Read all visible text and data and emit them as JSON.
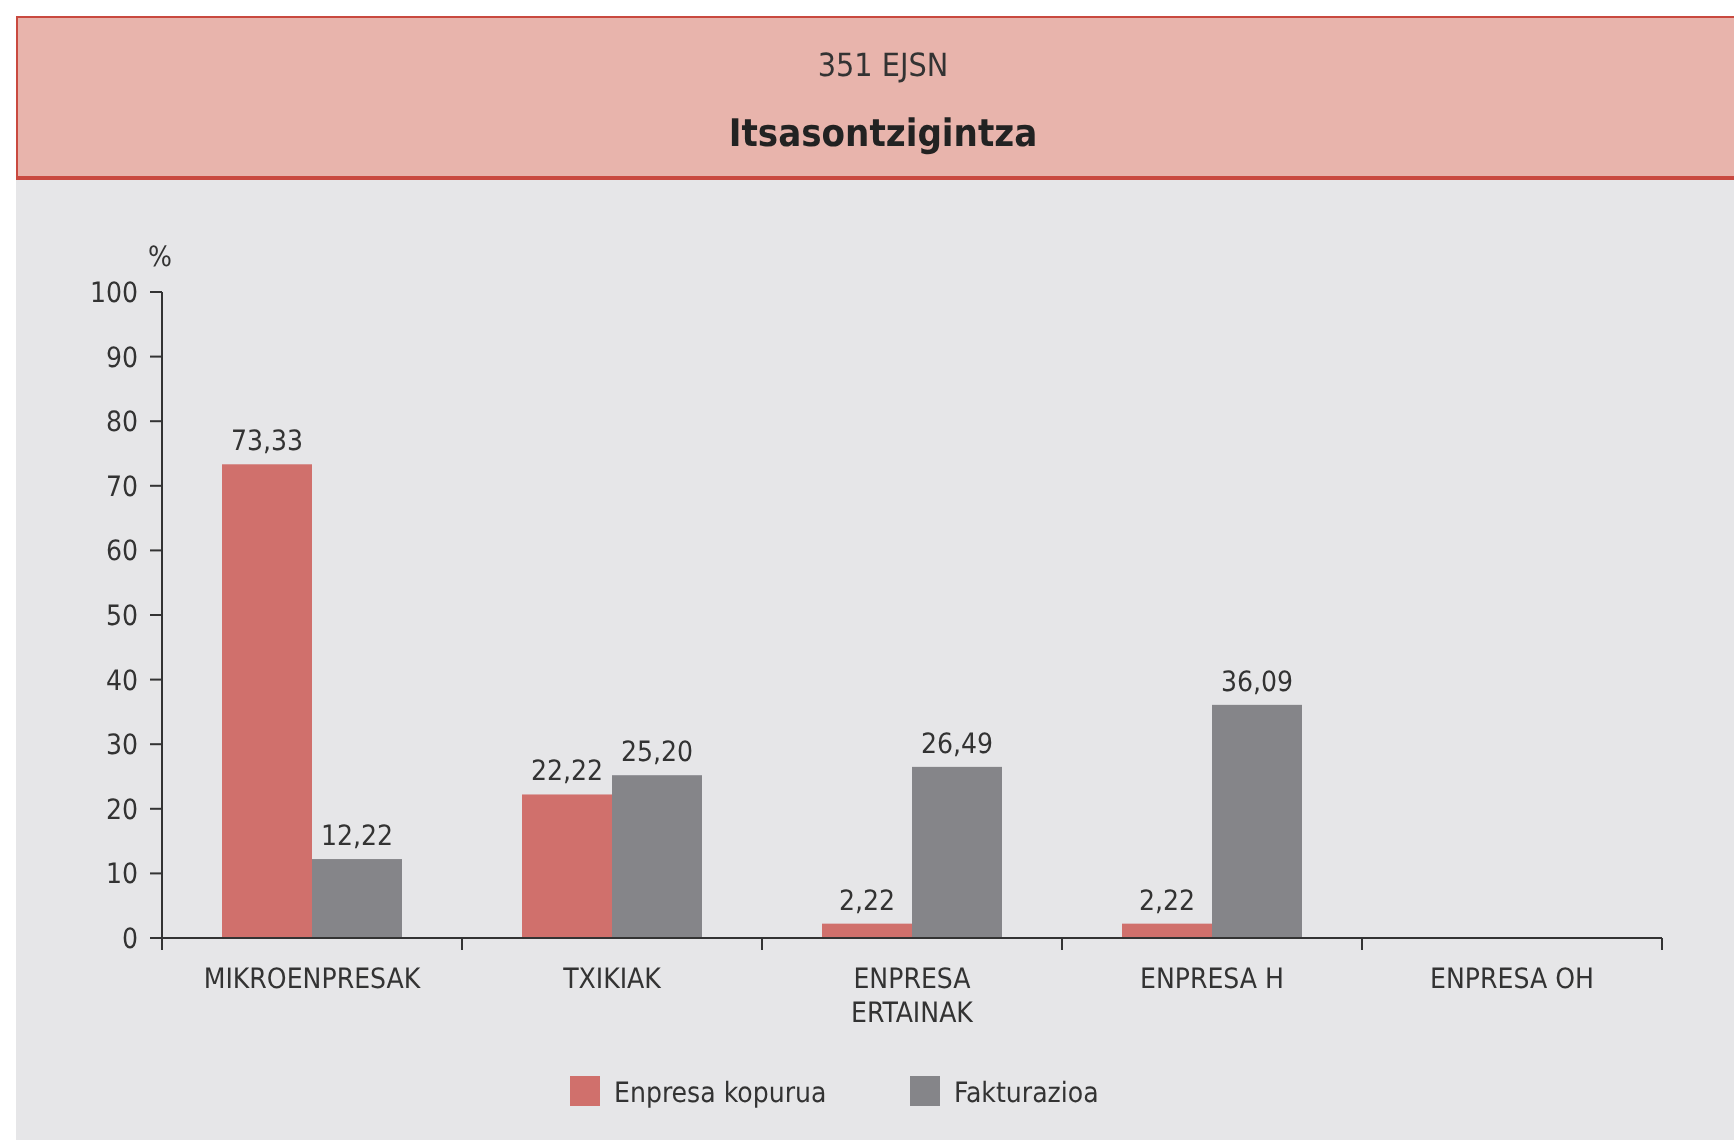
{
  "chart_data": {
    "type": "bar",
    "title": "351 EJSN",
    "subtitle": "Itsasontzigintza",
    "ylabel": "%",
    "categories": [
      "MIKROENPRESAK",
      "TXIKIAK",
      "ENPRESA\nERTAINAK",
      "ENPRESA H",
      "ENPRESA OH"
    ],
    "series": [
      {
        "name": "Enpresa kopurua",
        "color": "#d0706c",
        "values": [
          73.33,
          22.22,
          2.22,
          2.22,
          null
        ],
        "value_labels": [
          "73,33",
          "22,22",
          "2,22",
          "2,22",
          null
        ]
      },
      {
        "name": "Fakturazioa",
        "color": "#858589",
        "values": [
          12.22,
          25.2,
          26.49,
          36.09,
          null
        ],
        "value_labels": [
          "12,22",
          "25,20",
          "26,49",
          "36,09",
          null
        ]
      }
    ],
    "ylim": [
      0,
      100
    ],
    "yticks": [
      0,
      10,
      20,
      30,
      40,
      50,
      60,
      70,
      80,
      90,
      100
    ],
    "grid": false,
    "legend": "bottom"
  }
}
